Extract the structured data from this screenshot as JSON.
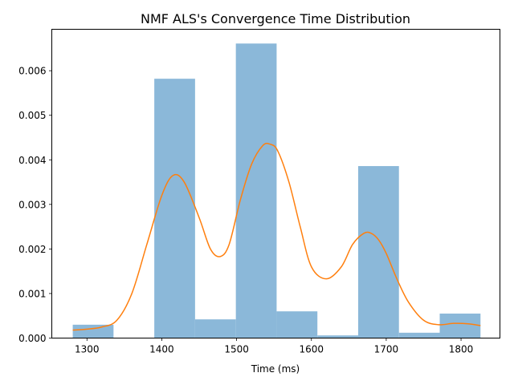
{
  "chart_data": {
    "type": "bar",
    "title": "NMF ALS's Convergence Time Distribution",
    "xlabel": "Time (ms)",
    "ylabel": "",
    "xlim": [
      1253,
      1852
    ],
    "ylim": [
      0,
      0.00693
    ],
    "x_ticks": [
      1300,
      1400,
      1500,
      1600,
      1700,
      1800
    ],
    "y_ticks": [
      0.0,
      0.001,
      0.002,
      0.003,
      0.004,
      0.005,
      0.006
    ],
    "x_tick_labels": [
      "1300",
      "1400",
      "1500",
      "1600",
      "1700",
      "1800"
    ],
    "y_tick_labels": [
      "0.000",
      "0.001",
      "0.002",
      "0.003",
      "0.004",
      "0.005",
      "0.006"
    ],
    "grid": false,
    "series": [
      {
        "kind": "histogram",
        "bin_edges": [
          1281,
          1335.5,
          1390,
          1444.5,
          1499,
          1553.5,
          1608,
          1662.5,
          1717,
          1771.5,
          1826
        ],
        "values": [
          0.0003,
          0.0,
          0.00582,
          0.00042,
          0.00661,
          0.0006,
          6e-05,
          0.00386,
          0.00012,
          0.00055
        ],
        "color": "#8bb8d9"
      },
      {
        "kind": "density-line",
        "color": "#ff7f0e",
        "x": [
          1281,
          1300,
          1320,
          1340,
          1360,
          1380,
          1400,
          1415,
          1430,
          1450,
          1465,
          1478,
          1490,
          1505,
          1520,
          1535,
          1545,
          1555,
          1570,
          1585,
          1600,
          1620,
          1640,
          1655,
          1670,
          1680,
          1690,
          1700,
          1715,
          1730,
          1750,
          1770,
          1790,
          1810,
          1826
        ],
        "y": [
          0.00018,
          0.0002,
          0.00025,
          0.0004,
          0.001,
          0.0021,
          0.0032,
          0.00365,
          0.0035,
          0.0027,
          0.002,
          0.00183,
          0.0021,
          0.0031,
          0.0039,
          0.00432,
          0.00435,
          0.0042,
          0.0035,
          0.0025,
          0.0016,
          0.00133,
          0.0016,
          0.0021,
          0.00235,
          0.00235,
          0.0022,
          0.0019,
          0.0013,
          0.0008,
          0.0004,
          0.0003,
          0.00033,
          0.00032,
          0.00028
        ]
      }
    ]
  }
}
